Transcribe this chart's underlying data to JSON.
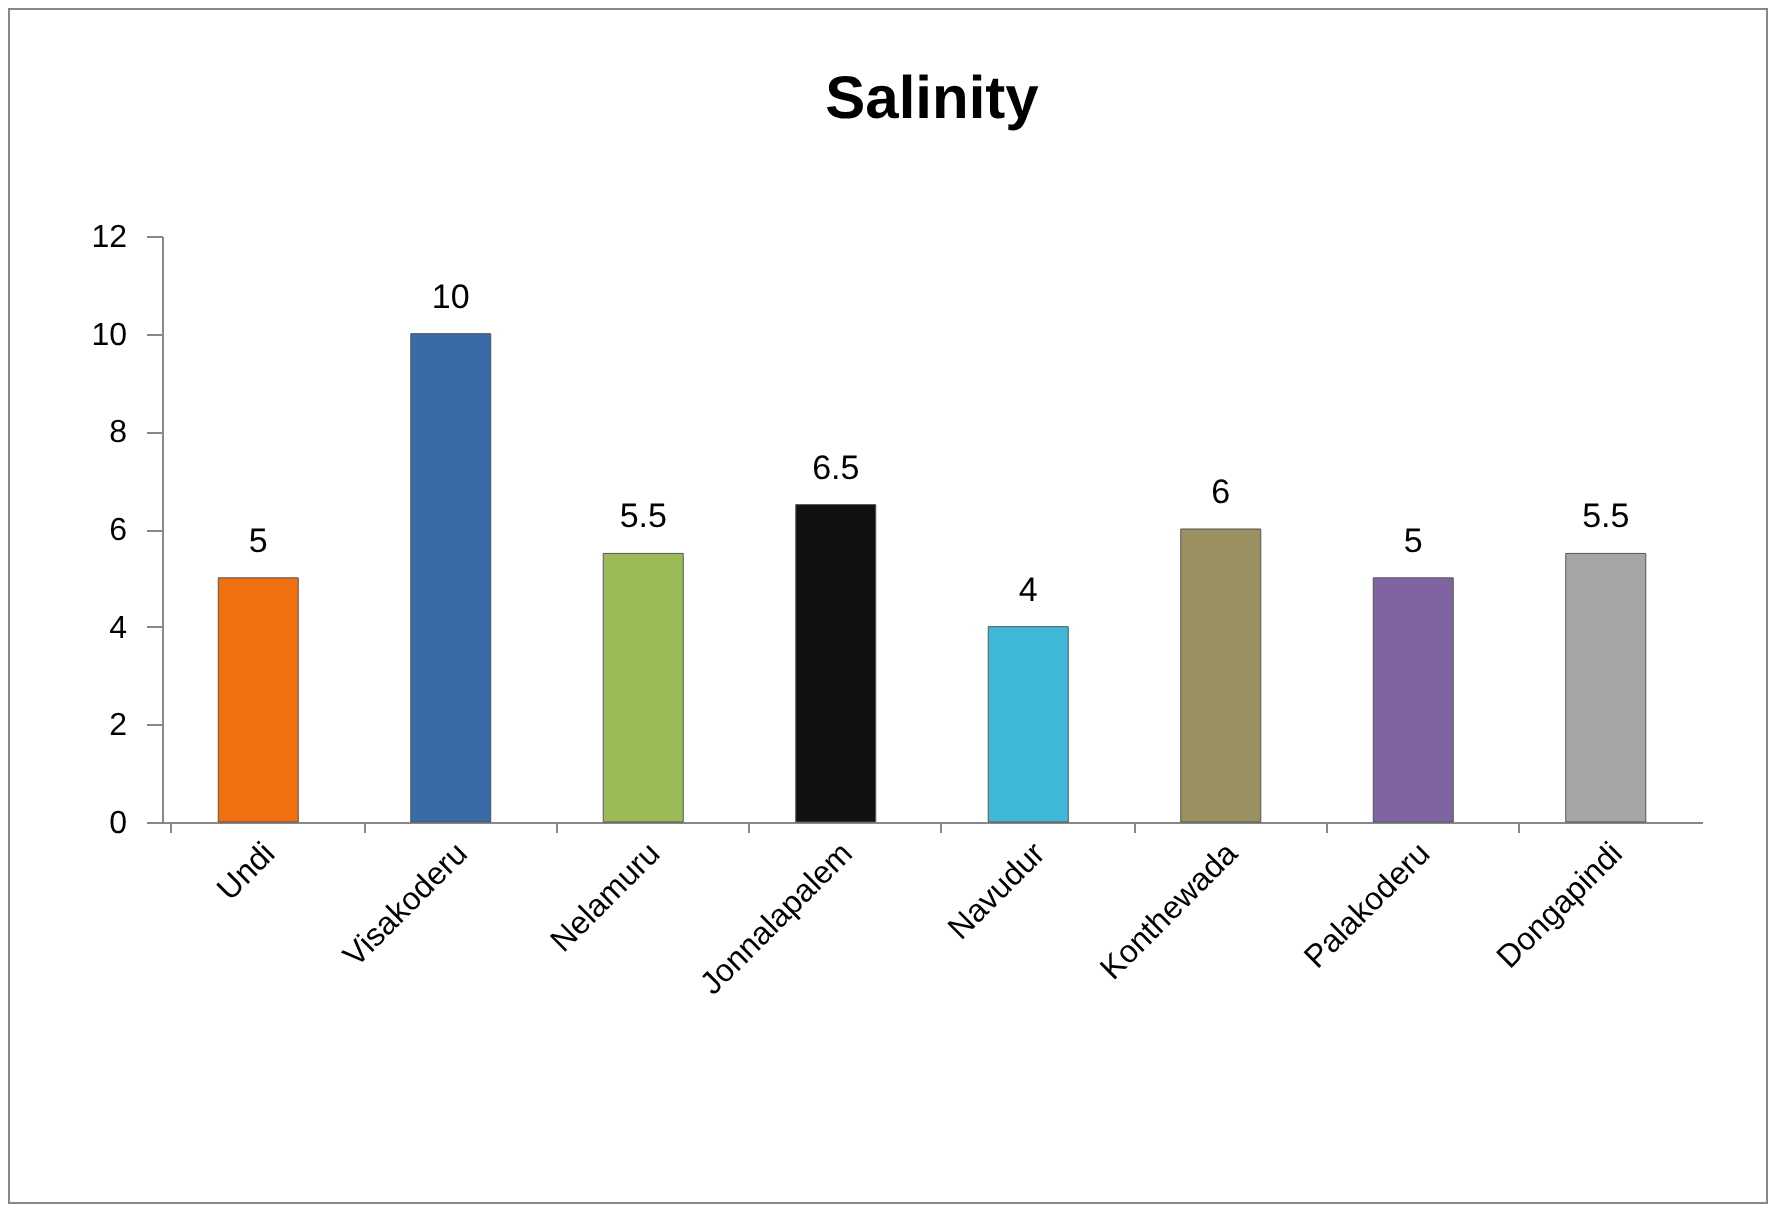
{
  "chart_data": {
    "type": "bar",
    "title": "Salinity",
    "categories": [
      "Undi",
      "Visakoderu",
      "Nelamuru",
      "Jonnalapalem",
      "Navudur",
      "Konthewada",
      "Palakoderu",
      "Dongapindi"
    ],
    "values": [
      5,
      10,
      5.5,
      6.5,
      4,
      6,
      5,
      5.5
    ],
    "colors": [
      "#f07010",
      "#3a6aa8",
      "#9bbb59",
      "#111111",
      "#40b8d8",
      "#9b9060",
      "#8064a2",
      "#a6a6a6"
    ],
    "ylim": [
      0,
      12
    ],
    "yticks": [
      0,
      2,
      4,
      6,
      8,
      10,
      12
    ],
    "data_labels": true
  }
}
